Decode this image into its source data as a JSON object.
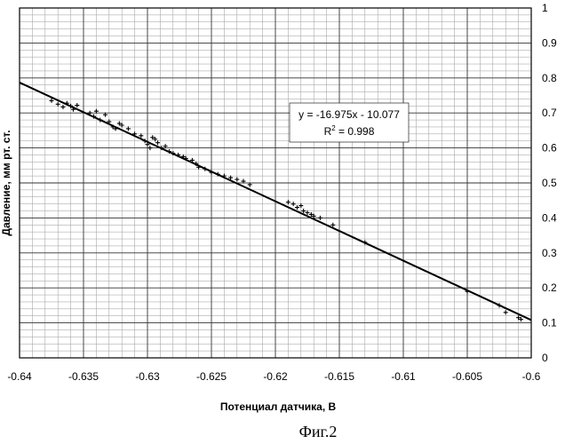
{
  "chart_data": {
    "type": "scatter",
    "caption": "Фиг.2",
    "xlabel": "Потенциал датчика, В",
    "ylabel": "Давление, мм рт. ст.",
    "xlim": [
      -0.64,
      -0.6
    ],
    "ylim": [
      0,
      1
    ],
    "x_ticks": [
      "-0.64",
      "-0.635",
      "-0.63",
      "-0.625",
      "-0.62",
      "-0.615",
      "-0.61",
      "-0.605",
      "-0.6"
    ],
    "y_ticks": [
      "0",
      "0.1",
      "0.2",
      "0.3",
      "0.4",
      "0.5",
      "0.6",
      "0.7",
      "0.8",
      "0.9",
      "1"
    ],
    "y_ticks_side": "right",
    "grid": true,
    "trendline": {
      "slope": -16.975,
      "intercept": -10.077,
      "equation_label": "y = -16.975x - 10.077",
      "r2_label_base": "R",
      "r2_label_sup": "2",
      "r2_label_value": " = 0.998"
    },
    "points": [
      [
        -0.6375,
        0.735
      ],
      [
        -0.637,
        0.725
      ],
      [
        -0.6366,
        0.717
      ],
      [
        -0.6363,
        0.728
      ],
      [
        -0.636,
        0.72
      ],
      [
        -0.6358,
        0.71
      ],
      [
        -0.6355,
        0.722
      ],
      [
        -0.6345,
        0.7
      ],
      [
        -0.6342,
        0.69
      ],
      [
        -0.634,
        0.705
      ],
      [
        -0.6337,
        0.68
      ],
      [
        -0.6333,
        0.695
      ],
      [
        -0.633,
        0.675
      ],
      [
        -0.6327,
        0.66
      ],
      [
        -0.6325,
        0.655
      ],
      [
        -0.6322,
        0.67
      ],
      [
        -0.632,
        0.665
      ],
      [
        -0.6315,
        0.655
      ],
      [
        -0.631,
        0.64
      ],
      [
        -0.6305,
        0.635
      ],
      [
        -0.6302,
        0.62
      ],
      [
        -0.63,
        0.61
      ],
      [
        -0.6298,
        0.6
      ],
      [
        -0.6296,
        0.63
      ],
      [
        -0.6294,
        0.625
      ],
      [
        -0.6292,
        0.615
      ],
      [
        -0.6289,
        0.6
      ],
      [
        -0.6286,
        0.605
      ],
      [
        -0.6283,
        0.59
      ],
      [
        -0.628,
        0.585
      ],
      [
        -0.6276,
        0.58
      ],
      [
        -0.6272,
        0.575
      ],
      [
        -0.627,
        0.57
      ],
      [
        -0.6265,
        0.565
      ],
      [
        -0.6262,
        0.555
      ],
      [
        -0.626,
        0.545
      ],
      [
        -0.6255,
        0.54
      ],
      [
        -0.625,
        0.53
      ],
      [
        -0.6245,
        0.525
      ],
      [
        -0.624,
        0.52
      ],
      [
        -0.6235,
        0.515
      ],
      [
        -0.623,
        0.51
      ],
      [
        -0.6225,
        0.505
      ],
      [
        -0.622,
        0.495
      ],
      [
        -0.619,
        0.445
      ],
      [
        -0.6186,
        0.44
      ],
      [
        -0.6183,
        0.43
      ],
      [
        -0.618,
        0.435
      ],
      [
        -0.6178,
        0.42
      ],
      [
        -0.6175,
        0.415
      ],
      [
        -0.6172,
        0.41
      ],
      [
        -0.617,
        0.405
      ],
      [
        -0.6165,
        0.4
      ],
      [
        -0.6155,
        0.38
      ],
      [
        -0.613,
        0.33
      ],
      [
        -0.605,
        0.19
      ],
      [
        -0.6025,
        0.15
      ],
      [
        -0.602,
        0.13
      ],
      [
        -0.601,
        0.115
      ],
      [
        -0.6008,
        0.11
      ]
    ]
  }
}
